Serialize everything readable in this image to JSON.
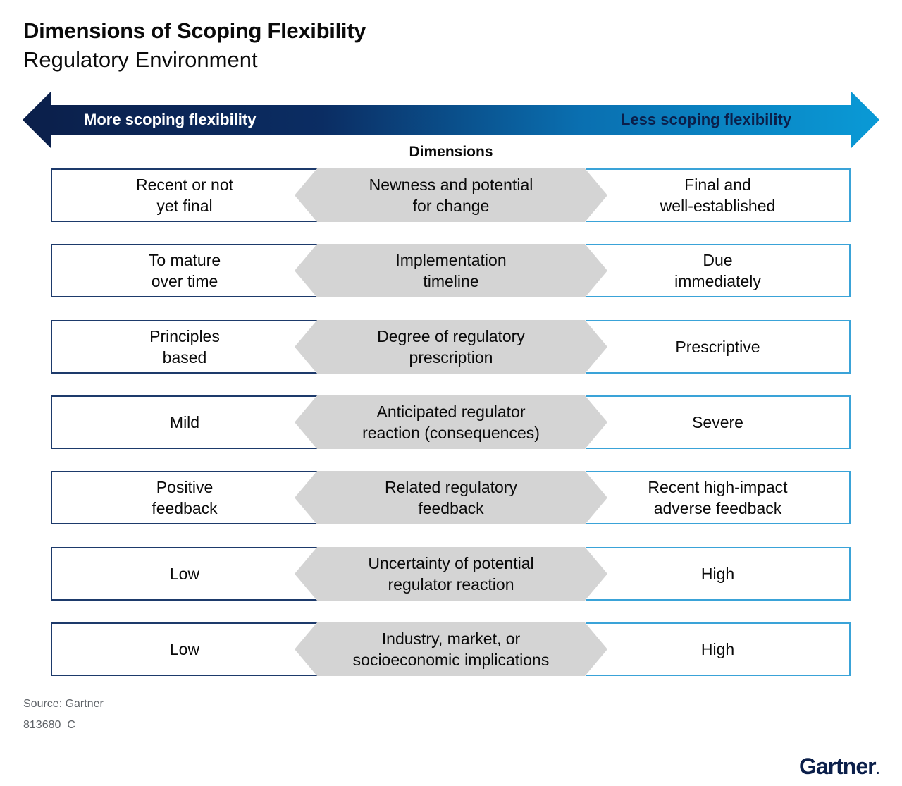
{
  "title": "Dimensions of Scoping Flexibility",
  "subtitle": "Regulatory Environment",
  "arrow": {
    "left_label": "More scoping flexibility",
    "right_label": "Less scoping flexibility"
  },
  "dimensions_header": "Dimensions",
  "rows": [
    {
      "left": "Recent or not\nyet final",
      "center": "Newness and potential\nfor change",
      "right": "Final and\nwell-established"
    },
    {
      "left": "To mature\nover time",
      "center": "Implementation\ntimeline",
      "right": "Due\nimmediately"
    },
    {
      "left": "Principles\nbased",
      "center": "Degree of regulatory\nprescription",
      "right": "Prescriptive"
    },
    {
      "left": "Mild",
      "center": "Anticipated regulator\nreaction (consequences)",
      "right": "Severe"
    },
    {
      "left": "Positive\nfeedback",
      "center": "Related regulatory\nfeedback",
      "right": "Recent high-impact\nadverse feedback"
    },
    {
      "left": "Low",
      "center": "Uncertainty of potential\nregulator reaction",
      "right": "High"
    },
    {
      "left": "Low",
      "center": "Industry, market, or\nsocioeconomic implications",
      "right": "High"
    }
  ],
  "footer": {
    "source": "Source: Gartner",
    "id": "813680_C"
  },
  "logo": "Gartner",
  "colors": {
    "dark_navy": "#0b1f4a",
    "bright_blue": "#0a93d1",
    "left_border": "#1d3a6b",
    "right_border": "#3aa3d8",
    "center_fill": "#d4d4d4"
  }
}
